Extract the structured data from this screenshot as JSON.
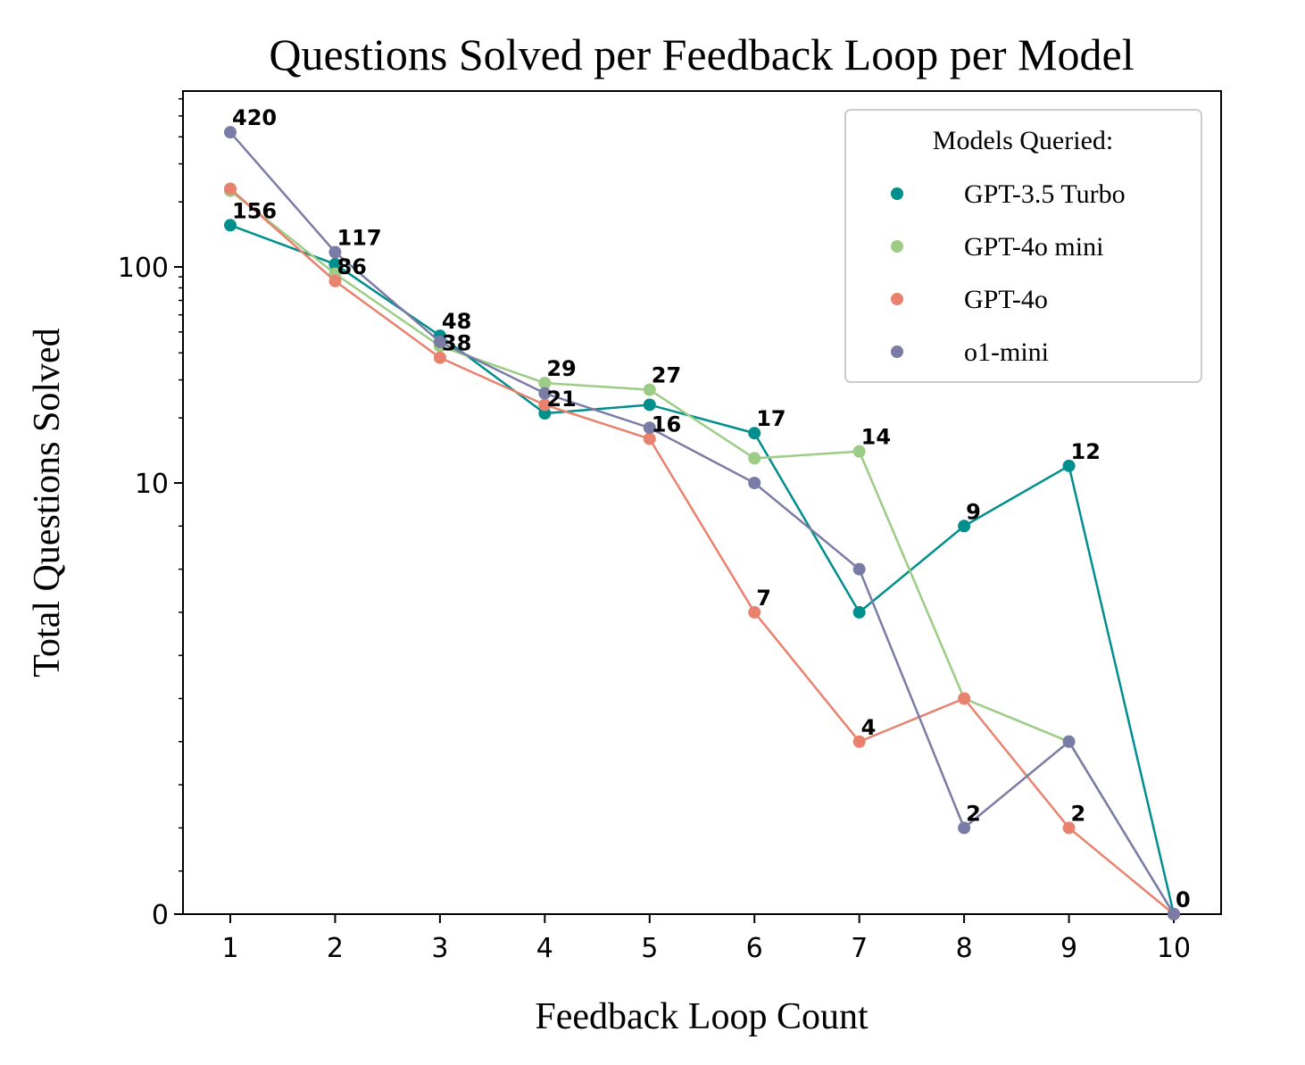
{
  "chart_data": {
    "type": "line",
    "title": "Questions Solved per Feedback Loop per Model",
    "xlabel": "Feedback Loop Count",
    "ylabel": "Total Questions Solved",
    "yscale": "symlog",
    "x": [
      1,
      2,
      3,
      4,
      5,
      6,
      7,
      8,
      9,
      10
    ],
    "xticks": [
      "1",
      "2",
      "3",
      "4",
      "5",
      "6",
      "7",
      "8",
      "9",
      "10"
    ],
    "yticks": [
      "0",
      "10",
      "100"
    ],
    "ylim": [
      0,
      600
    ],
    "grid": false,
    "legend": {
      "title": "Models Queried:",
      "placement": "top-right"
    },
    "series": [
      {
        "name": "GPT-3.5 Turbo",
        "color": "#008f8c",
        "values": [
          156,
          103,
          48,
          21,
          23,
          17,
          7,
          9,
          12,
          0
        ]
      },
      {
        "name": "GPT-4o mini",
        "color": "#9ccc85",
        "values": [
          225,
          93,
          43,
          29,
          27,
          13,
          14,
          5,
          4,
          0
        ]
      },
      {
        "name": "GPT-4o",
        "color": "#e8826e",
        "values": [
          230,
          86,
          38,
          23,
          16,
          7,
          4,
          5,
          2,
          0
        ]
      },
      {
        "name": "o1-mini",
        "color": "#7a7ca6",
        "values": [
          420,
          117,
          45,
          26,
          18,
          10,
          8,
          2,
          4,
          0
        ]
      }
    ],
    "data_labels": [
      {
        "text": "420",
        "x": 1,
        "y": 420
      },
      {
        "text": "156",
        "x": 1,
        "y": 156
      },
      {
        "text": "117",
        "x": 2,
        "y": 117
      },
      {
        "text": "86",
        "x": 2,
        "y": 86
      },
      {
        "text": "48",
        "x": 3,
        "y": 48
      },
      {
        "text": "38",
        "x": 3,
        "y": 38
      },
      {
        "text": "29",
        "x": 4,
        "y": 29
      },
      {
        "text": "21",
        "x": 4,
        "y": 21
      },
      {
        "text": "27",
        "x": 5,
        "y": 27
      },
      {
        "text": "16",
        "x": 5,
        "y": 16
      },
      {
        "text": "17",
        "x": 6,
        "y": 17
      },
      {
        "text": "7",
        "x": 6,
        "y": 7
      },
      {
        "text": "14",
        "x": 7,
        "y": 14
      },
      {
        "text": "4",
        "x": 7,
        "y": 4
      },
      {
        "text": "9",
        "x": 8,
        "y": 9
      },
      {
        "text": "2",
        "x": 8,
        "y": 2
      },
      {
        "text": "12",
        "x": 9,
        "y": 12
      },
      {
        "text": "2",
        "x": 9,
        "y": 2
      },
      {
        "text": "0",
        "x": 10,
        "y": 0
      }
    ]
  }
}
